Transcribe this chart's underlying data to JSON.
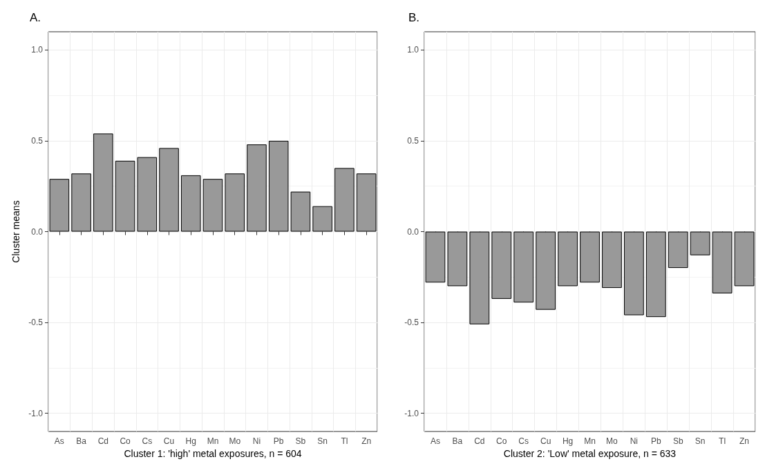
{
  "chart_data": [
    {
      "type": "bar",
      "title": "A.",
      "xlabel": "Cluster 1: 'high' metal exposures, n = 604",
      "ylabel": "Cluster means",
      "categories": [
        "As",
        "Ba",
        "Cd",
        "Co",
        "Cs",
        "Cu",
        "Hg",
        "Mn",
        "Mo",
        "Ni",
        "Pb",
        "Sb",
        "Sn",
        "Tl",
        "Zn"
      ],
      "values": [
        0.29,
        0.32,
        0.54,
        0.39,
        0.41,
        0.46,
        0.31,
        0.29,
        0.32,
        0.48,
        0.5,
        0.22,
        0.14,
        0.35,
        0.32
      ],
      "color": "#999999",
      "ylim": [
        -1.1,
        1.1
      ],
      "yticks": [
        {
          "value": -1,
          "label": "-1.0"
        },
        {
          "value": -0.5,
          "label": "-0.5"
        },
        {
          "value": 0,
          "label": "0.0"
        },
        {
          "value": 0.5,
          "label": "0.5"
        },
        {
          "value": 1,
          "label": "1.0"
        }
      ],
      "grid": true
    },
    {
      "type": "bar",
      "title": "B.",
      "xlabel": "Cluster 2: 'Low' metal exposure, n = 633",
      "categories": [
        "As",
        "Ba",
        "Cd",
        "Co",
        "Cs",
        "Cu",
        "Hg",
        "Mn",
        "Mo",
        "Ni",
        "Pb",
        "Sb",
        "Sn",
        "Tl",
        "Zn"
      ],
      "values": [
        -0.28,
        -0.3,
        -0.51,
        -0.37,
        -0.39,
        -0.43,
        -0.3,
        -0.28,
        -0.31,
        -0.46,
        -0.47,
        -0.2,
        -0.13,
        -0.34,
        -0.3
      ],
      "color": "#999999",
      "ylim": [
        -1.1,
        1.1
      ],
      "yticks": [
        {
          "value": -1,
          "label": "-1.0"
        },
        {
          "value": -0.5,
          "label": "-0.5"
        },
        {
          "value": 0,
          "label": "0.0"
        },
        {
          "value": 0.5,
          "label": "0.5"
        },
        {
          "value": 1,
          "label": "1.0"
        }
      ],
      "grid": true
    }
  ]
}
